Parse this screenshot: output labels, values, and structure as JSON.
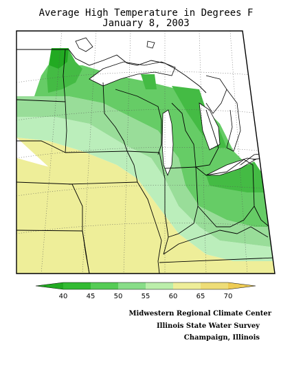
{
  "title": {
    "line1": "Average High Temperature in Degrees F",
    "line2": "January 8, 2003"
  },
  "legend": {
    "labels": [
      "40",
      "45",
      "50",
      "55",
      "60",
      "65",
      "70"
    ],
    "colors": [
      "#22aa22",
      "#33bb33",
      "#55cc55",
      "#88dd88",
      "#bbeeaa",
      "#eeee99",
      "#eedd77",
      "#eecc55"
    ]
  },
  "credits": {
    "line1": "Midwestern Regional Climate Center",
    "line2": "Illinois State Water Survey",
    "line3": "Champaign, Illinois"
  },
  "colors": {
    "green_dark": "#22aa22",
    "green": "#44bb44",
    "green_mid": "#66cc66",
    "green_light": "#99dd99",
    "green_pale": "#bbeebb",
    "yellow_pale": "#eeee99",
    "yellow": "#eedd77",
    "orange": "#eebb55"
  }
}
